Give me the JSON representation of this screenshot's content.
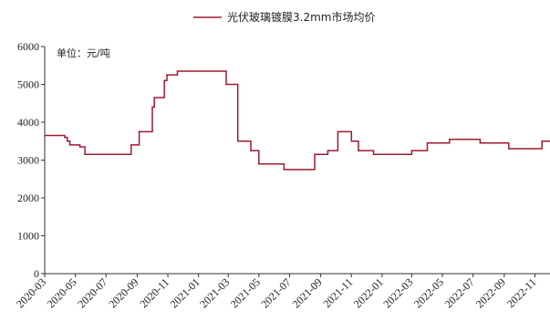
{
  "chart_data": {
    "type": "line",
    "legend": {
      "label": "光伏玻璃镀膜3.2mm市场均价",
      "position": "top-center"
    },
    "unit_label": "单位：元/吨",
    "ylim": [
      0,
      6000
    ],
    "y_ticks": [
      0,
      1000,
      2000,
      3000,
      4000,
      5000,
      6000
    ],
    "y_tick_labels": [
      "0",
      "1000",
      "2000",
      "3000",
      "4000",
      "5000",
      "6000"
    ],
    "x_range": [
      "2020-03-01",
      "2022-12-01"
    ],
    "x_ticks": [
      "2020-03",
      "2020-05",
      "2020-07",
      "2020-09",
      "2020-11",
      "2021-01",
      "2021-03",
      "2021-05",
      "2021-07",
      "2021-09",
      "2021-11",
      "2022-01",
      "2022-03",
      "2022-05",
      "2022-07",
      "2022-09",
      "2022-11"
    ],
    "grid": false,
    "colors": {
      "line": "#9e1b32",
      "axis": "#333333"
    },
    "series": [
      {
        "name": "光伏玻璃镀膜3.2mm市场均价",
        "step": true,
        "points": [
          [
            "2020-03-01",
            3650
          ],
          [
            "2020-04-10",
            3600
          ],
          [
            "2020-04-15",
            3500
          ],
          [
            "2020-04-20",
            3400
          ],
          [
            "2020-05-10",
            3350
          ],
          [
            "2020-05-20",
            3150
          ],
          [
            "2020-08-20",
            3400
          ],
          [
            "2020-09-05",
            3750
          ],
          [
            "2020-10-01",
            4400
          ],
          [
            "2020-10-05",
            4650
          ],
          [
            "2020-10-25",
            5100
          ],
          [
            "2020-10-30",
            5250
          ],
          [
            "2020-11-20",
            5350
          ],
          [
            "2021-02-25",
            5000
          ],
          [
            "2021-03-20",
            3500
          ],
          [
            "2021-04-15",
            3250
          ],
          [
            "2021-05-01",
            2900
          ],
          [
            "2021-06-20",
            2750
          ],
          [
            "2021-08-20",
            3150
          ],
          [
            "2021-09-15",
            3250
          ],
          [
            "2021-10-05",
            3750
          ],
          [
            "2021-11-01",
            3500
          ],
          [
            "2021-11-15",
            3250
          ],
          [
            "2021-12-15",
            3150
          ],
          [
            "2022-03-01",
            3250
          ],
          [
            "2022-04-01",
            3450
          ],
          [
            "2022-05-15",
            3550
          ],
          [
            "2022-07-15",
            3450
          ],
          [
            "2022-09-10",
            3300
          ],
          [
            "2022-11-15",
            3500
          ],
          [
            "2022-12-01",
            3500
          ]
        ]
      }
    ]
  }
}
